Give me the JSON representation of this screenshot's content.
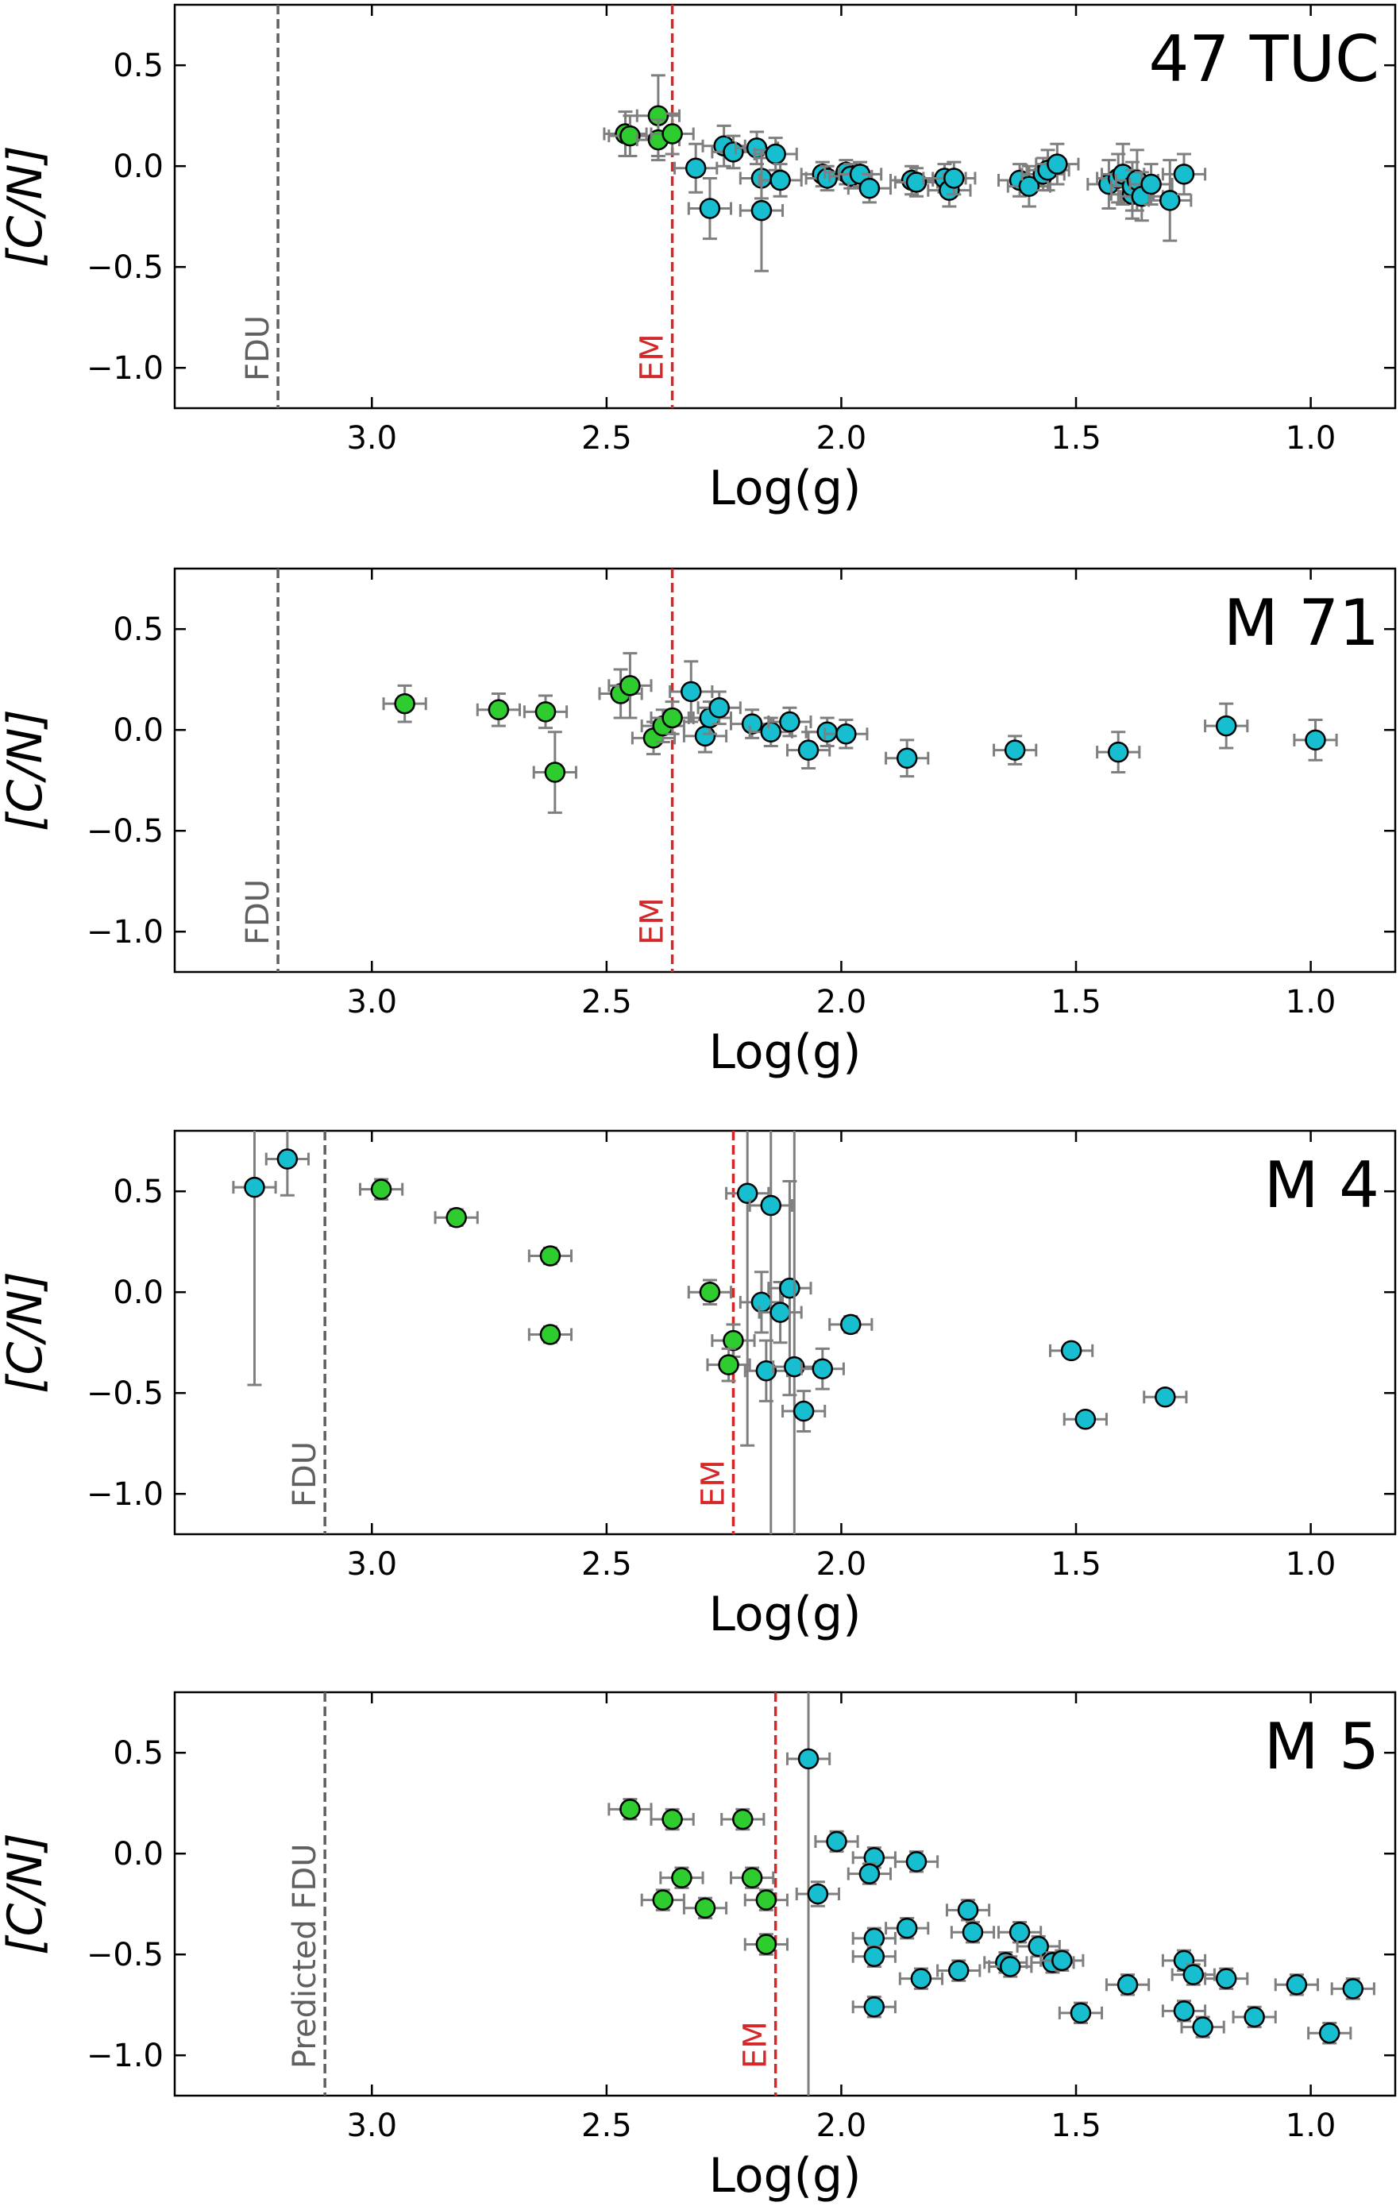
{
  "chart_data": [
    {
      "type": "scatter",
      "title": "47 TUC",
      "xlabel": "Log(g)",
      "ylabel": "[C/N]",
      "xlim": [
        3.42,
        0.82
      ],
      "ylim": [
        -1.2,
        0.8
      ],
      "xticks": [
        "3.0",
        "2.5",
        "2.0",
        "1.5",
        "1.0"
      ],
      "xtick_values": [
        3.0,
        2.5,
        2.0,
        1.5,
        1.0
      ],
      "yticks": [
        "0.5",
        "0.0",
        "−0.5",
        "−1.0"
      ],
      "ytick_values": [
        0.5,
        0.0,
        -0.5,
        -1.0
      ],
      "reference_lines": [
        {
          "label": "FDU",
          "x": 3.2,
          "color": "#606060"
        },
        {
          "label": "EM",
          "x": 2.36,
          "color": "#d62728"
        }
      ],
      "series": [
        {
          "name": "green",
          "color": "#2ecc2e",
          "points": [
            {
              "x": 2.46,
              "y": 0.16,
              "e": 0.11
            },
            {
              "x": 2.45,
              "y": 0.15,
              "e": 0.1
            },
            {
              "x": 2.39,
              "y": 0.25,
              "e": 0.2
            },
            {
              "x": 2.39,
              "y": 0.13,
              "e": 0.1
            },
            {
              "x": 2.36,
              "y": 0.16,
              "e": 0.1
            }
          ]
        },
        {
          "name": "cyan",
          "color": "#17becf",
          "points": [
            {
              "x": 2.31,
              "y": -0.01,
              "e": 0.12
            },
            {
              "x": 2.28,
              "y": -0.21,
              "e": 0.15
            },
            {
              "x": 2.25,
              "y": 0.1,
              "e": 0.1
            },
            {
              "x": 2.23,
              "y": 0.07,
              "e": 0.08
            },
            {
              "x": 2.18,
              "y": 0.09,
              "e": 0.08
            },
            {
              "x": 2.17,
              "y": -0.06,
              "e": 0.1
            },
            {
              "x": 2.17,
              "y": -0.22,
              "e": 0.3
            },
            {
              "x": 2.14,
              "y": 0.06,
              "e": 0.08
            },
            {
              "x": 2.13,
              "y": -0.07,
              "e": 0.08
            },
            {
              "x": 2.04,
              "y": -0.04,
              "e": 0.06
            },
            {
              "x": 2.03,
              "y": -0.06,
              "e": 0.06
            },
            {
              "x": 1.99,
              "y": -0.03,
              "e": 0.06
            },
            {
              "x": 1.98,
              "y": -0.05,
              "e": 0.06
            },
            {
              "x": 1.96,
              "y": -0.04,
              "e": 0.06
            },
            {
              "x": 1.94,
              "y": -0.11,
              "e": 0.07
            },
            {
              "x": 1.85,
              "y": -0.07,
              "e": 0.07
            },
            {
              "x": 1.84,
              "y": -0.08,
              "e": 0.07
            },
            {
              "x": 1.78,
              "y": -0.06,
              "e": 0.07
            },
            {
              "x": 1.77,
              "y": -0.12,
              "e": 0.08
            },
            {
              "x": 1.76,
              "y": -0.06,
              "e": 0.08
            },
            {
              "x": 1.62,
              "y": -0.07,
              "e": 0.08
            },
            {
              "x": 1.6,
              "y": -0.1,
              "e": 0.1
            },
            {
              "x": 1.57,
              "y": -0.04,
              "e": 0.08
            },
            {
              "x": 1.56,
              "y": -0.02,
              "e": 0.1
            },
            {
              "x": 1.54,
              "y": 0.01,
              "e": 0.1
            },
            {
              "x": 1.43,
              "y": -0.09,
              "e": 0.12
            },
            {
              "x": 1.41,
              "y": -0.06,
              "e": 0.12
            },
            {
              "x": 1.4,
              "y": -0.04,
              "e": 0.15
            },
            {
              "x": 1.38,
              "y": -0.14,
              "e": 0.12
            },
            {
              "x": 1.38,
              "y": -0.1,
              "e": 0.12
            },
            {
              "x": 1.37,
              "y": -0.07,
              "e": 0.15
            },
            {
              "x": 1.36,
              "y": -0.15,
              "e": 0.12
            },
            {
              "x": 1.34,
              "y": -0.09,
              "e": 0.1
            },
            {
              "x": 1.3,
              "y": -0.17,
              "e": 0.2
            },
            {
              "x": 1.27,
              "y": -0.04,
              "e": 0.1
            }
          ]
        }
      ]
    },
    {
      "type": "scatter",
      "title": "M 71",
      "xlabel": "Log(g)",
      "ylabel": "[C/N]",
      "xlim": [
        3.42,
        0.82
      ],
      "ylim": [
        -1.2,
        0.8
      ],
      "xticks": [
        "3.0",
        "2.5",
        "2.0",
        "1.5",
        "1.0"
      ],
      "xtick_values": [
        3.0,
        2.5,
        2.0,
        1.5,
        1.0
      ],
      "yticks": [
        "0.5",
        "0.0",
        "−0.5",
        "−1.0"
      ],
      "ytick_values": [
        0.5,
        0.0,
        -0.5,
        -1.0
      ],
      "reference_lines": [
        {
          "label": "FDU",
          "x": 3.2,
          "color": "#606060"
        },
        {
          "label": "EM",
          "x": 2.36,
          "color": "#d62728"
        }
      ],
      "series": [
        {
          "name": "green",
          "color": "#2ecc2e",
          "points": [
            {
              "x": 2.93,
              "y": 0.13,
              "e": 0.09
            },
            {
              "x": 2.73,
              "y": 0.1,
              "e": 0.08
            },
            {
              "x": 2.63,
              "y": 0.09,
              "e": 0.08
            },
            {
              "x": 2.61,
              "y": -0.21,
              "e": 0.2
            },
            {
              "x": 2.47,
              "y": 0.18,
              "e": 0.12
            },
            {
              "x": 2.45,
              "y": 0.22,
              "e": 0.16
            },
            {
              "x": 2.4,
              "y": -0.04,
              "e": 0.08
            },
            {
              "x": 2.38,
              "y": 0.02,
              "e": 0.08
            },
            {
              "x": 2.36,
              "y": 0.06,
              "e": 0.08
            }
          ]
        },
        {
          "name": "cyan",
          "color": "#17becf",
          "points": [
            {
              "x": 2.32,
              "y": 0.19,
              "e": 0.15
            },
            {
              "x": 2.29,
              "y": -0.03,
              "e": 0.08
            },
            {
              "x": 2.28,
              "y": 0.06,
              "e": 0.08
            },
            {
              "x": 2.26,
              "y": 0.11,
              "e": 0.08
            },
            {
              "x": 2.19,
              "y": 0.03,
              "e": 0.07
            },
            {
              "x": 2.15,
              "y": -0.01,
              "e": 0.07
            },
            {
              "x": 2.11,
              "y": 0.04,
              "e": 0.07
            },
            {
              "x": 2.07,
              "y": -0.1,
              "e": 0.09
            },
            {
              "x": 2.03,
              "y": -0.01,
              "e": 0.07
            },
            {
              "x": 1.99,
              "y": -0.02,
              "e": 0.07
            },
            {
              "x": 1.86,
              "y": -0.14,
              "e": 0.09
            },
            {
              "x": 1.63,
              "y": -0.1,
              "e": 0.07
            },
            {
              "x": 1.41,
              "y": -0.11,
              "e": 0.1
            },
            {
              "x": 1.18,
              "y": 0.02,
              "e": 0.11
            },
            {
              "x": 0.99,
              "y": -0.05,
              "e": 0.1
            }
          ]
        }
      ]
    },
    {
      "type": "scatter",
      "title": "M 4",
      "xlabel": "Log(g)",
      "ylabel": "[C/N]",
      "xlim": [
        3.42,
        0.82
      ],
      "ylim": [
        -1.2,
        0.8
      ],
      "xticks": [
        "3.0",
        "2.5",
        "2.0",
        "1.5",
        "1.0"
      ],
      "xtick_values": [
        3.0,
        2.5,
        2.0,
        1.5,
        1.0
      ],
      "yticks": [
        "0.5",
        "0.0",
        "−0.5",
        "−1.0"
      ],
      "ytick_values": [
        0.5,
        0.0,
        -0.5,
        -1.0
      ],
      "reference_lines": [
        {
          "label": "FDU",
          "x": 3.1,
          "color": "#606060"
        },
        {
          "label": "EM",
          "x": 2.23,
          "color": "#d62728"
        }
      ],
      "series": [
        {
          "name": "green",
          "color": "#2ecc2e",
          "points": [
            {
              "x": 2.98,
              "y": 0.51,
              "e": 0.05
            },
            {
              "x": 2.82,
              "y": 0.37,
              "e": 0.04
            },
            {
              "x": 2.62,
              "y": 0.18,
              "e": 0.04
            },
            {
              "x": 2.62,
              "y": -0.21,
              "e": 0.04
            },
            {
              "x": 2.28,
              "y": 0.0,
              "e": 0.06
            },
            {
              "x": 2.23,
              "y": -0.24,
              "e": 0.08
            },
            {
              "x": 2.24,
              "y": -0.36,
              "e": 0.08
            }
          ]
        },
        {
          "name": "cyan",
          "color": "#17becf",
          "points": [
            {
              "x": 3.25,
              "y": 0.52,
              "e": 0.98
            },
            {
              "x": 3.18,
              "y": 0.66,
              "e": 0.18
            },
            {
              "x": 2.2,
              "y": 0.49,
              "e": 1.25
            },
            {
              "x": 2.17,
              "y": -0.05,
              "e": 0.15
            },
            {
              "x": 2.15,
              "y": 0.43,
              "e": 1.95
            },
            {
              "x": 2.16,
              "y": -0.39,
              "e": 0.15
            },
            {
              "x": 2.13,
              "y": -0.1,
              "e": 0.15
            },
            {
              "x": 2.11,
              "y": 0.02,
              "e": 0.53
            },
            {
              "x": 2.1,
              "y": -0.37,
              "e": 1.95
            },
            {
              "x": 2.08,
              "y": -0.59,
              "e": 0.1
            },
            {
              "x": 2.04,
              "y": -0.38,
              "e": 0.1
            },
            {
              "x": 1.98,
              "y": -0.16,
              "e": 0.04
            },
            {
              "x": 1.51,
              "y": -0.29,
              "e": 0.03
            },
            {
              "x": 1.48,
              "y": -0.63,
              "e": 0.03
            },
            {
              "x": 1.31,
              "y": -0.52,
              "e": 0.03
            }
          ]
        }
      ]
    },
    {
      "type": "scatter",
      "title": "M 5",
      "xlabel": "Log(g)",
      "ylabel": "[C/N]",
      "xlim": [
        3.42,
        0.82
      ],
      "ylim": [
        -1.2,
        0.8
      ],
      "xticks": [
        "3.0",
        "2.5",
        "2.0",
        "1.5",
        "1.0"
      ],
      "xtick_values": [
        3.0,
        2.5,
        2.0,
        1.5,
        1.0
      ],
      "yticks": [
        "0.5",
        "0.0",
        "−0.5",
        "−1.0"
      ],
      "ytick_values": [
        0.5,
        0.0,
        -0.5,
        -1.0
      ],
      "reference_lines": [
        {
          "label": "Predicted FDU",
          "x": 3.1,
          "color": "#606060"
        },
        {
          "label": "EM",
          "x": 2.14,
          "color": "#d62728"
        }
      ],
      "series": [
        {
          "name": "green",
          "color": "#2ecc2e",
          "points": [
            {
              "x": 2.45,
              "y": 0.22,
              "e": 0.05
            },
            {
              "x": 2.36,
              "y": 0.17,
              "e": 0.05
            },
            {
              "x": 2.21,
              "y": 0.17,
              "e": 0.05
            },
            {
              "x": 2.34,
              "y": -0.12,
              "e": 0.05
            },
            {
              "x": 2.19,
              "y": -0.12,
              "e": 0.05
            },
            {
              "x": 2.38,
              "y": -0.23,
              "e": 0.05
            },
            {
              "x": 2.29,
              "y": -0.27,
              "e": 0.05
            },
            {
              "x": 2.16,
              "y": -0.23,
              "e": 0.05
            },
            {
              "x": 2.16,
              "y": -0.45,
              "e": 0.05
            }
          ]
        },
        {
          "name": "cyan",
          "color": "#17becf",
          "points": [
            {
              "x": 2.07,
              "y": 0.47,
              "e": 1.75
            },
            {
              "x": 2.01,
              "y": 0.06,
              "e": 0.05
            },
            {
              "x": 2.05,
              "y": -0.2,
              "e": 0.06
            },
            {
              "x": 1.93,
              "y": -0.02,
              "e": 0.05
            },
            {
              "x": 1.94,
              "y": -0.1,
              "e": 0.05
            },
            {
              "x": 1.84,
              "y": -0.04,
              "e": 0.05
            },
            {
              "x": 1.93,
              "y": -0.42,
              "e": 0.05
            },
            {
              "x": 1.93,
              "y": -0.51,
              "e": 0.05
            },
            {
              "x": 1.86,
              "y": -0.37,
              "e": 0.05
            },
            {
              "x": 1.83,
              "y": -0.62,
              "e": 0.05
            },
            {
              "x": 1.93,
              "y": -0.76,
              "e": 0.05
            },
            {
              "x": 1.73,
              "y": -0.28,
              "e": 0.05
            },
            {
              "x": 1.72,
              "y": -0.39,
              "e": 0.05
            },
            {
              "x": 1.75,
              "y": -0.58,
              "e": 0.05
            },
            {
              "x": 1.65,
              "y": -0.54,
              "e": 0.05
            },
            {
              "x": 1.64,
              "y": -0.56,
              "e": 0.05
            },
            {
              "x": 1.62,
              "y": -0.39,
              "e": 0.05
            },
            {
              "x": 1.58,
              "y": -0.46,
              "e": 0.05
            },
            {
              "x": 1.55,
              "y": -0.54,
              "e": 0.05
            },
            {
              "x": 1.53,
              "y": -0.53,
              "e": 0.05
            },
            {
              "x": 1.49,
              "y": -0.79,
              "e": 0.05
            },
            {
              "x": 1.39,
              "y": -0.65,
              "e": 0.05
            },
            {
              "x": 1.27,
              "y": -0.53,
              "e": 0.05
            },
            {
              "x": 1.25,
              "y": -0.6,
              "e": 0.05
            },
            {
              "x": 1.27,
              "y": -0.78,
              "e": 0.05
            },
            {
              "x": 1.23,
              "y": -0.86,
              "e": 0.05
            },
            {
              "x": 1.18,
              "y": -0.62,
              "e": 0.05
            },
            {
              "x": 1.12,
              "y": -0.81,
              "e": 0.05
            },
            {
              "x": 1.03,
              "y": -0.65,
              "e": 0.05
            },
            {
              "x": 0.96,
              "y": -0.89,
              "e": 0.05
            },
            {
              "x": 0.91,
              "y": -0.67,
              "e": 0.05
            }
          ]
        }
      ]
    }
  ]
}
